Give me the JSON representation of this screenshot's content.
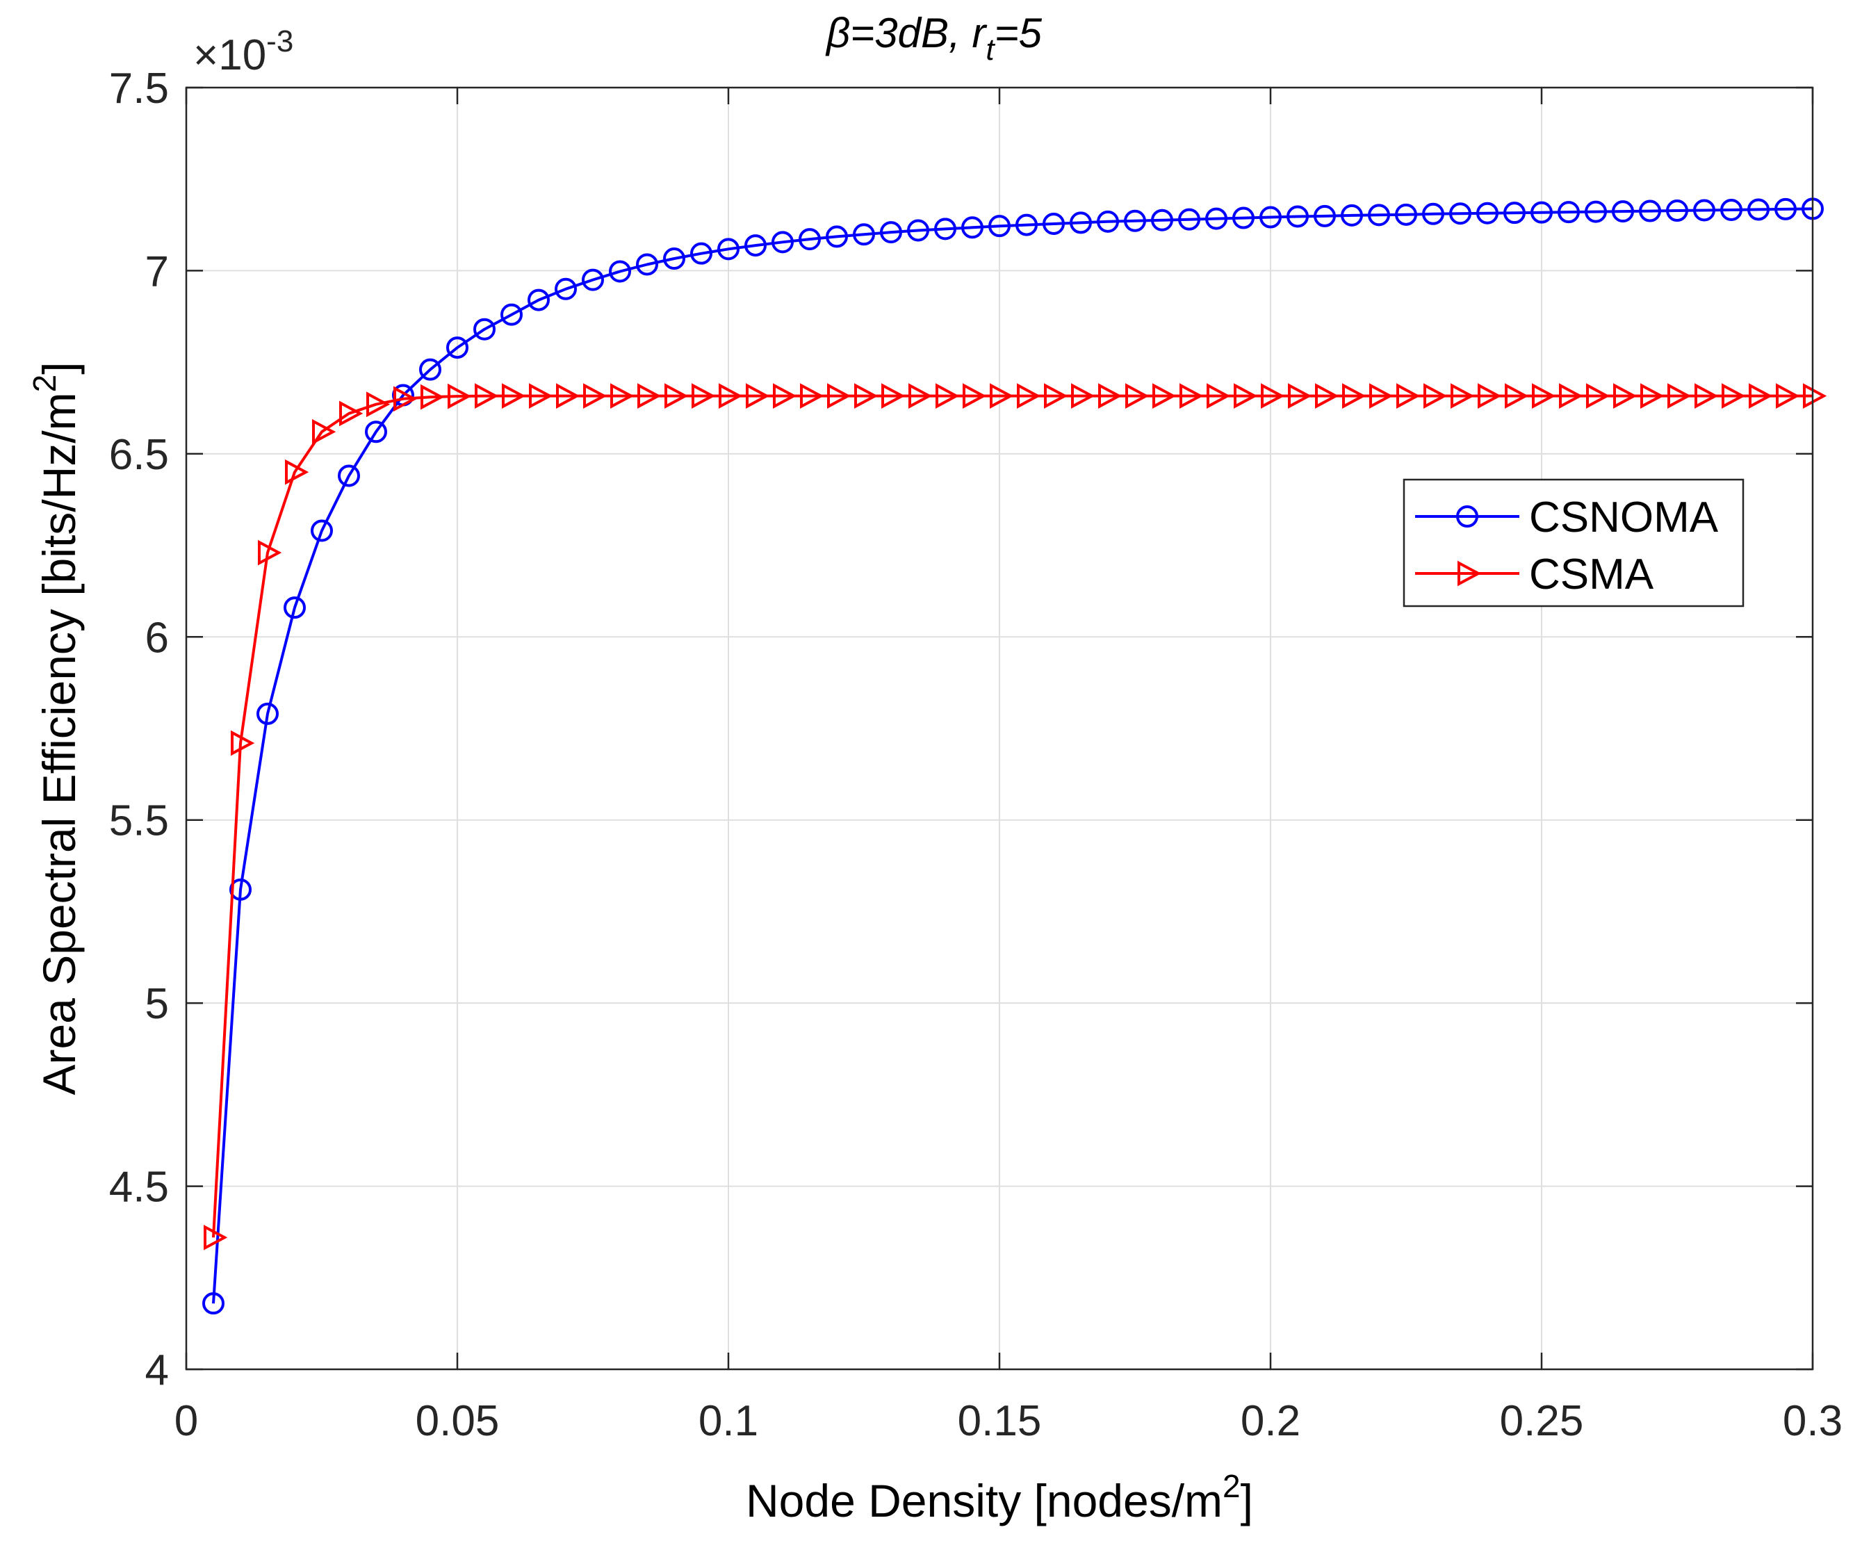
{
  "chart_data": {
    "type": "line",
    "title": "β=3dB, r_t=5",
    "title_parts": {
      "lead": "β=3dB, r",
      "sub": "t",
      "tail": "=5"
    },
    "xlabel": "Node Density [nodes/m2]",
    "xlabel_parts": {
      "lead": "Node Density [nodes/m",
      "sup": "2",
      "tail": "]"
    },
    "ylabel": "Area Spectral Efficiency [bits/Hz/m2]",
    "ylabel_parts": {
      "lead": "Area Spectral Efficiency [bits/Hz/m",
      "sup": "2",
      "tail": "]"
    },
    "y_exponent": {
      "lead": "×10",
      "sup": "-3"
    },
    "xlim": [
      0,
      0.3
    ],
    "ylim": [
      4,
      7.5
    ],
    "x_ticks": [
      "0",
      "0.05",
      "0.1",
      "0.15",
      "0.2",
      "0.25",
      "0.3"
    ],
    "y_ticks": [
      "4",
      "4.5",
      "5",
      "5.5",
      "6",
      "6.5",
      "7",
      "7.5"
    ],
    "grid": true,
    "legend_position": "right",
    "x_start": 0.005,
    "x_step": 0.005,
    "series": [
      {
        "name": "CSNOMA",
        "color": "#0000ff",
        "marker": "circle",
        "values": [
          4.18,
          5.31,
          5.79,
          6.08,
          6.29,
          6.44,
          6.56,
          6.66,
          6.73,
          6.79,
          6.84,
          6.88,
          6.92,
          6.95,
          6.975,
          6.998,
          7.017,
          7.033,
          7.047,
          7.059,
          7.069,
          7.078,
          7.086,
          7.093,
          7.099,
          7.105,
          7.11,
          7.114,
          7.118,
          7.122,
          7.125,
          7.128,
          7.131,
          7.134,
          7.136,
          7.138,
          7.14,
          7.142,
          7.144,
          7.146,
          7.148,
          7.149,
          7.151,
          7.152,
          7.153,
          7.155,
          7.156,
          7.157,
          7.158,
          7.159,
          7.16,
          7.161,
          7.162,
          7.163,
          7.164,
          7.165,
          7.166,
          7.167,
          7.168,
          7.169
        ]
      },
      {
        "name": "CSMA",
        "color": "#ff0000",
        "marker": "triangle-right",
        "values": [
          4.36,
          5.71,
          6.23,
          6.45,
          6.56,
          6.61,
          6.635,
          6.65,
          6.655,
          6.657,
          6.658,
          6.658,
          6.658,
          6.658,
          6.658,
          6.658,
          6.658,
          6.658,
          6.658,
          6.658,
          6.658,
          6.658,
          6.658,
          6.658,
          6.658,
          6.658,
          6.658,
          6.658,
          6.658,
          6.658,
          6.658,
          6.658,
          6.658,
          6.658,
          6.658,
          6.658,
          6.658,
          6.658,
          6.658,
          6.658,
          6.658,
          6.658,
          6.658,
          6.658,
          6.658,
          6.658,
          6.658,
          6.658,
          6.658,
          6.658,
          6.658,
          6.658,
          6.658,
          6.658,
          6.658,
          6.658,
          6.658,
          6.658,
          6.658,
          6.658
        ]
      }
    ]
  }
}
